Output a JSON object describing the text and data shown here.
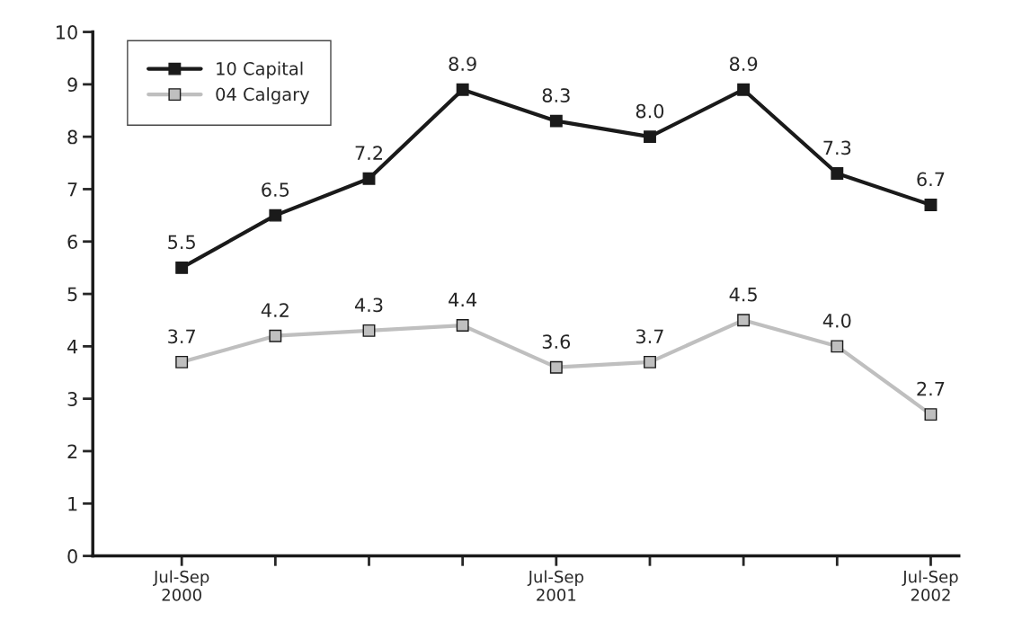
{
  "chart_data": {
    "type": "line",
    "categories": [
      "Jul-Sep\n2000",
      null,
      null,
      null,
      "Jul-Sep\n2001",
      null,
      null,
      null,
      "Jul-Sep\n2002"
    ],
    "series": [
      {
        "name": "10 Capital",
        "color": "#1a1a1a",
        "values": [
          5.5,
          6.5,
          7.2,
          8.9,
          8.3,
          8.0,
          8.9,
          7.3,
          6.7
        ],
        "value_labels": [
          "5.5",
          "6.5",
          "7.2",
          "8.9",
          "8.3",
          "8.0",
          "8.9",
          "7.3",
          "6.7"
        ]
      },
      {
        "name": "04 Calgary",
        "color": "#bfbfbf",
        "values": [
          3.7,
          4.2,
          4.3,
          4.4,
          3.6,
          3.7,
          4.5,
          4.0,
          2.7
        ],
        "value_labels": [
          "3.7",
          "4.2",
          "4.3",
          "4.4",
          "3.6",
          "3.7",
          "4.5",
          "4.0",
          "2.7"
        ]
      }
    ],
    "ylim": [
      0,
      10
    ],
    "yticks": [
      0,
      1,
      2,
      3,
      4,
      5,
      6,
      7,
      8,
      9,
      10
    ],
    "marker": "square",
    "line_style": "solid",
    "grid": false,
    "legend": "top left"
  }
}
